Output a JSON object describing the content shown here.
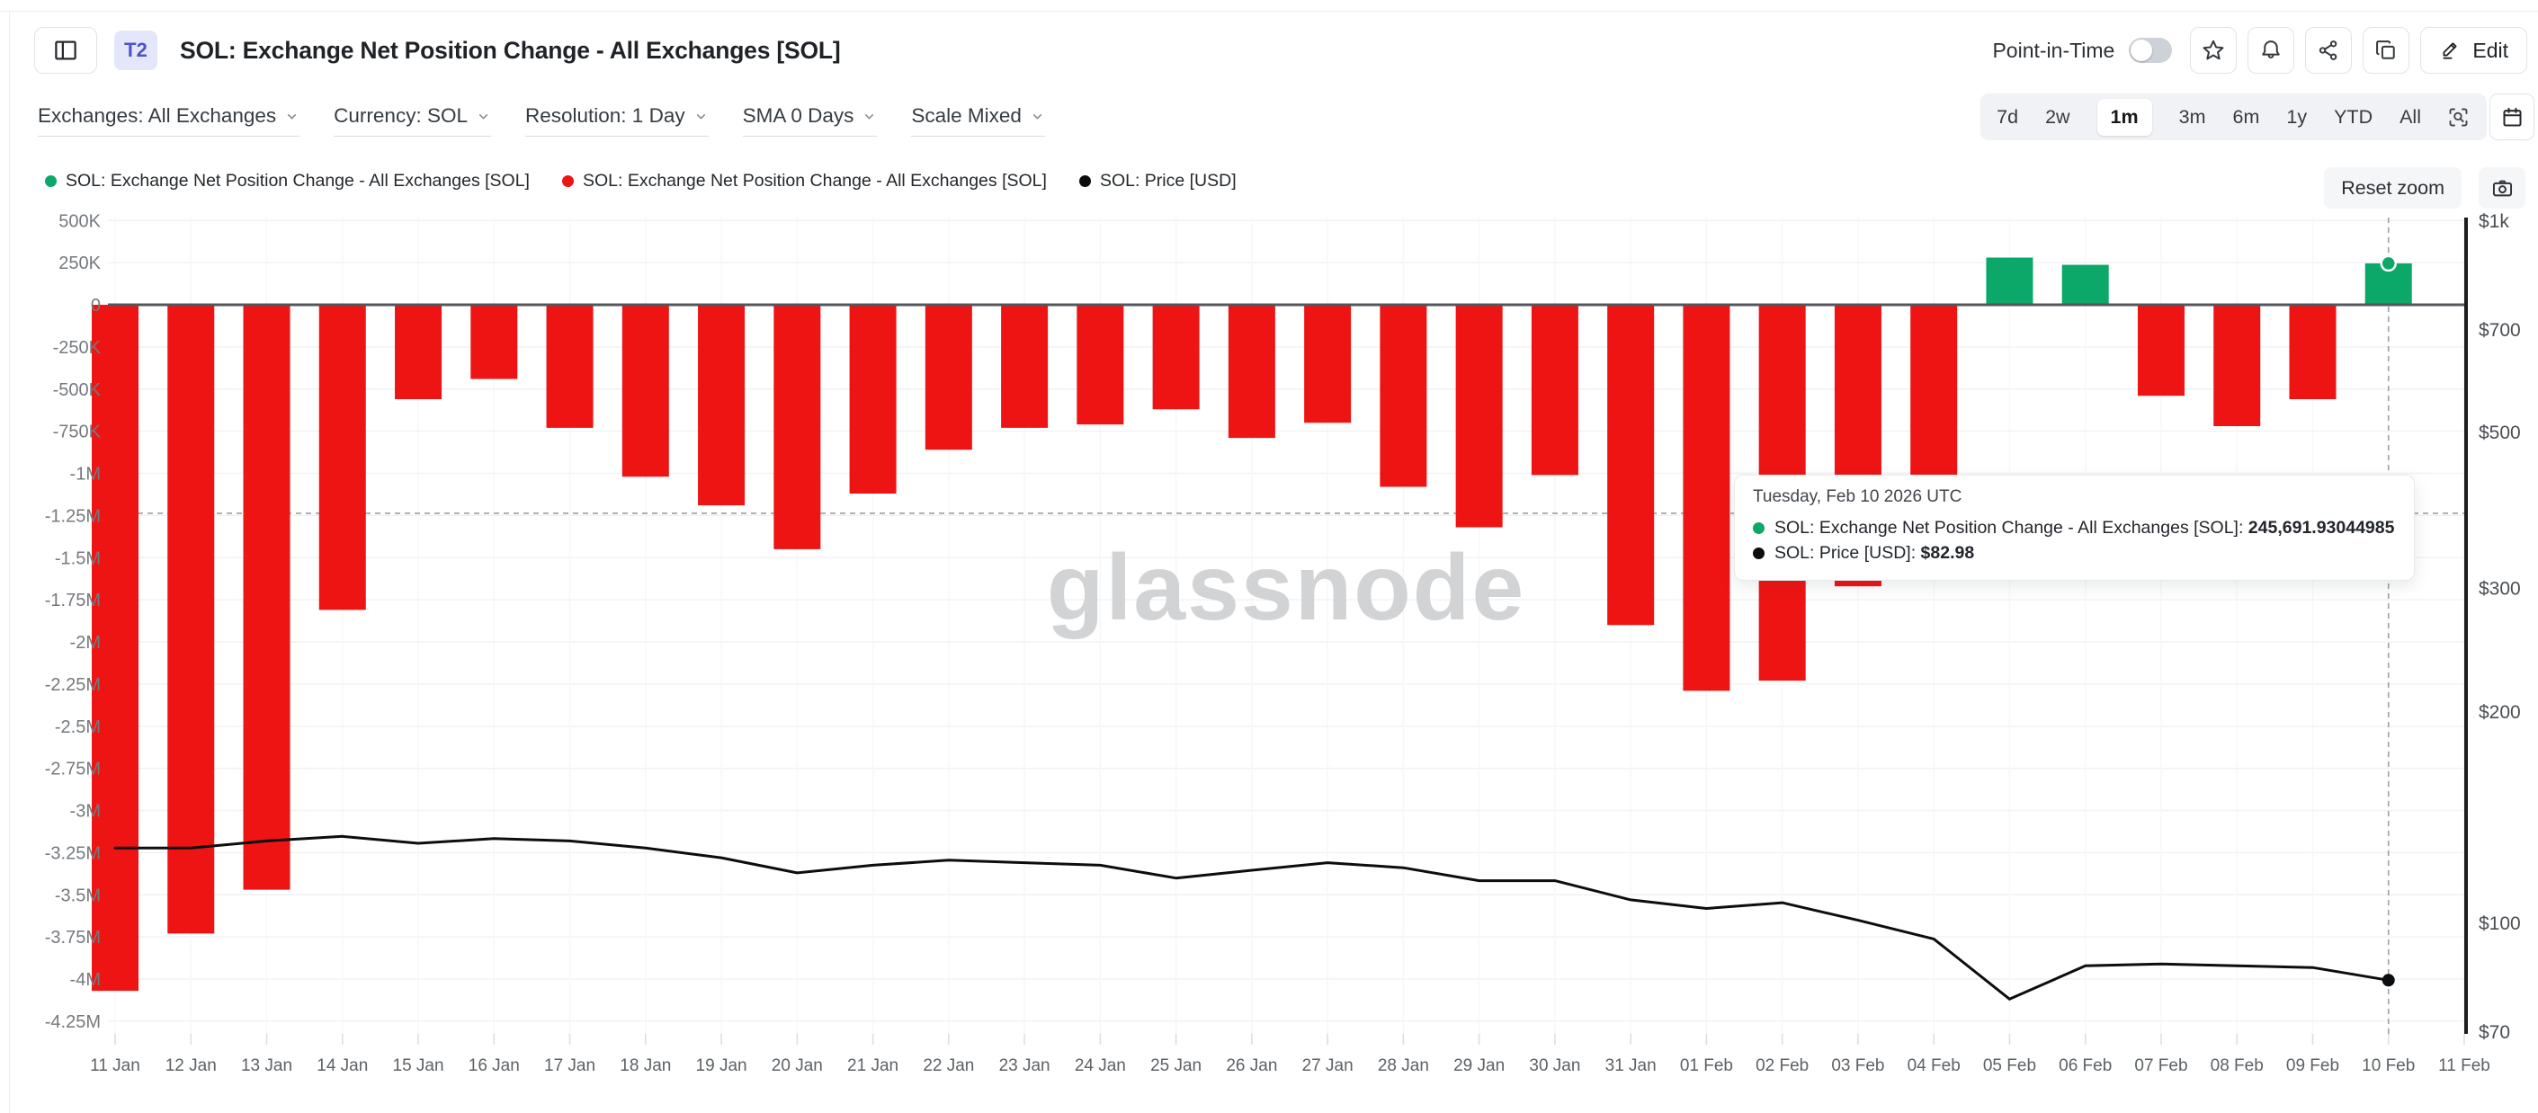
{
  "header": {
    "badge": "T2",
    "title": "SOL: Exchange Net Position Change - All Exchanges [SOL]",
    "point_in_time_label": "Point-in-Time",
    "point_in_time_enabled": false,
    "edit_label": "Edit"
  },
  "toolbar": {
    "filters": [
      "Exchanges: All Exchanges",
      "Currency: SOL",
      "Resolution: 1 Day",
      "SMA 0 Days",
      "Scale Mixed"
    ],
    "ranges": [
      "7d",
      "2w",
      "1m",
      "3m",
      "6m",
      "1y",
      "YTD",
      "All"
    ],
    "selected_range": "1m"
  },
  "legend": {
    "items": [
      {
        "label": "SOL: Exchange Net Position Change - All Exchanges [SOL]",
        "color": "#0ca869"
      },
      {
        "label": "SOL: Exchange Net Position Change - All Exchanges [SOL]",
        "color": "#ee1414"
      },
      {
        "label": "SOL: Price [USD]",
        "color": "#0c0d0e"
      }
    ],
    "reset_zoom_label": "Reset zoom"
  },
  "tooltip": {
    "date": "Tuesday, Feb 10 2026 UTC",
    "rows": [
      {
        "color": "#0ca869",
        "label": "SOL: Exchange Net Position Change - All Exchanges [SOL]:",
        "value": "245,691.93044985"
      },
      {
        "color": "#0c0d0e",
        "label": "SOL: Price [USD]:",
        "value": "$82.98"
      }
    ]
  },
  "watermark": "glassnode",
  "colors": {
    "positive": "#0ca869",
    "negative": "#ee1414",
    "price_line": "#0c0d0e",
    "badge_bg": "#e4e7fb",
    "badge_text": "#4d53cd",
    "grid": "#f1f2f4",
    "zero_line": "#53565b"
  },
  "chart_data": {
    "type": "bar",
    "combo": "column+line",
    "title": "SOL: Exchange Net Position Change - All Exchanges [SOL]",
    "categories": [
      "11 Jan",
      "12 Jan",
      "13 Jan",
      "14 Jan",
      "15 Jan",
      "16 Jan",
      "17 Jan",
      "18 Jan",
      "19 Jan",
      "20 Jan",
      "21 Jan",
      "22 Jan",
      "23 Jan",
      "24 Jan",
      "25 Jan",
      "26 Jan",
      "27 Jan",
      "28 Jan",
      "29 Jan",
      "30 Jan",
      "31 Jan",
      "01 Feb",
      "02 Feb",
      "03 Feb",
      "04 Feb",
      "05 Feb",
      "06 Feb",
      "07 Feb",
      "08 Feb",
      "09 Feb",
      "10 Feb"
    ],
    "x_axis_labels": [
      "11 Jan",
      "12 Jan",
      "13 Jan",
      "14 Jan",
      "15 Jan",
      "16 Jan",
      "17 Jan",
      "18 Jan",
      "19 Jan",
      "20 Jan",
      "21 Jan",
      "22 Jan",
      "23 Jan",
      "24 Jan",
      "25 Jan",
      "26 Jan",
      "27 Jan",
      "28 Jan",
      "29 Jan",
      "30 Jan",
      "31 Jan",
      "01 Feb",
      "02 Feb",
      "03 Feb",
      "04 Feb",
      "05 Feb",
      "06 Feb",
      "07 Feb",
      "08 Feb",
      "09 Feb",
      "10 Feb",
      "11 Feb"
    ],
    "series": [
      {
        "name": "SOL: Exchange Net Position Change - All Exchanges [SOL]",
        "type": "column",
        "axis": "left",
        "unit": "SOL",
        "values": [
          -4070000,
          -3730000,
          -3470000,
          -1810000,
          -560000,
          -440000,
          -730000,
          -1020000,
          -1190000,
          -1450000,
          -1120000,
          -860000,
          -730000,
          -710000,
          -620000,
          -790000,
          -700000,
          -1080000,
          -1320000,
          -1010000,
          -1900000,
          -2290000,
          -2230000,
          -1670000,
          -1300000,
          280000,
          237000,
          -540000,
          -720000,
          -560000,
          245691.93044985
        ]
      },
      {
        "name": "SOL: Price [USD]",
        "type": "line",
        "axis": "right",
        "unit": "USD",
        "values": [
          128,
          128,
          131,
          133,
          130,
          132,
          131,
          128,
          124,
          118,
          121,
          123,
          122,
          121,
          116,
          119,
          122,
          120,
          115,
          115,
          108,
          105,
          107,
          101,
          95,
          78,
          87,
          87.5,
          87,
          86.5,
          82.98
        ]
      }
    ],
    "left_axis": {
      "tick_labels": [
        "500K",
        "250K",
        "0",
        "-250K",
        "-500K",
        "-750K",
        "-1M",
        "-1.25M",
        "-1.5M",
        "-1.75M",
        "-2M",
        "-2.25M",
        "-2.5M",
        "-2.75M",
        "-3M",
        "-3.25M",
        "-3.5M",
        "-3.75M",
        "-4M",
        "-4.25M"
      ],
      "tick_values": [
        500000,
        250000,
        0,
        -250000,
        -500000,
        -750000,
        -1000000,
        -1250000,
        -1500000,
        -1750000,
        -2000000,
        -2250000,
        -2500000,
        -2750000,
        -3000000,
        -3250000,
        -3500000,
        -3750000,
        -4000000,
        -4250000
      ],
      "min": -4250000,
      "max": 500000
    },
    "right_axis": {
      "scale": "log",
      "min": 70,
      "max": 1000,
      "ticks": [
        {
          "label": "$1k",
          "value": 1000
        },
        {
          "label": "$700",
          "value": 700
        },
        {
          "label": "$500",
          "value": 500
        },
        {
          "label": "$300",
          "value": 300
        },
        {
          "label": "$200",
          "value": 200
        },
        {
          "label": "$100",
          "value": 100
        },
        {
          "label": "$70",
          "value": 70
        }
      ]
    },
    "crosshair": {
      "x_index": 30,
      "y_value": -1237000
    },
    "grid": true,
    "legend_position": "top-left"
  }
}
